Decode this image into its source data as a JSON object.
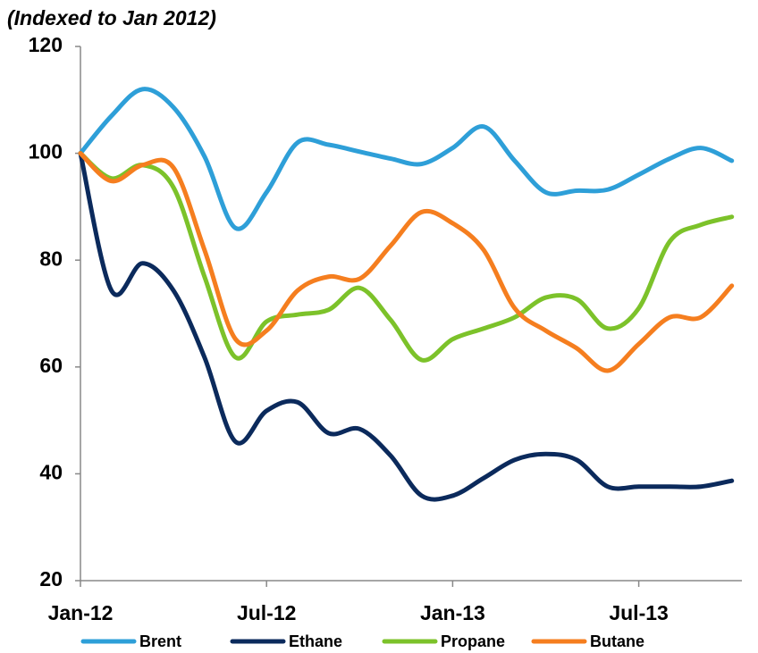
{
  "chart_data": {
    "type": "line",
    "subtitle": "(Indexed  to Jan 2012)",
    "categories": [
      "Jan-12",
      null,
      null,
      null,
      null,
      null,
      "Jul-12",
      null,
      null,
      null,
      null,
      null,
      "Jan-13",
      null,
      null,
      null,
      null,
      null,
      "Jul-13",
      null,
      null,
      null
    ],
    "series": [
      {
        "name": "Brent",
        "color": "#2e9fd8",
        "values": [
          100,
          107,
          112,
          108.6,
          99.4,
          86,
          92.7,
          102,
          101.6,
          100.3,
          99,
          98,
          101,
          105,
          98.6,
          92.7,
          93,
          93.2,
          96,
          99,
          101,
          98.6
        ]
      },
      {
        "name": "Ethane",
        "color": "#0b2a5c",
        "values": [
          100,
          74.3,
          79.4,
          74.3,
          61.8,
          46,
          51.8,
          53.4,
          47.6,
          48.4,
          43.4,
          35.9,
          35.9,
          39.2,
          42.6,
          43.7,
          42.6,
          37.6,
          37.6,
          37.6,
          37.6,
          38.7
        ]
      },
      {
        "name": "Propane",
        "color": "#7cc22a",
        "values": [
          100,
          95.3,
          97.8,
          93.6,
          76.9,
          61.8,
          68.5,
          69.8,
          70.7,
          74.8,
          68.8,
          61.3,
          65.2,
          67.2,
          69.3,
          73,
          72.7,
          67.2,
          71,
          83.5,
          86.6,
          88.1
        ]
      },
      {
        "name": "Butane",
        "color": "#f57e1f",
        "values": [
          100,
          94.8,
          97.8,
          97.3,
          81.9,
          65.2,
          66.8,
          74.3,
          76.9,
          76.5,
          82.7,
          89,
          86.9,
          81.9,
          71,
          66.8,
          63.5,
          59.3,
          64.3,
          69.3,
          69.3,
          75.2
        ]
      }
    ],
    "ylim": [
      20,
      120
    ],
    "yticks": [
      20,
      40,
      60,
      80,
      100,
      120
    ],
    "grid": false
  }
}
